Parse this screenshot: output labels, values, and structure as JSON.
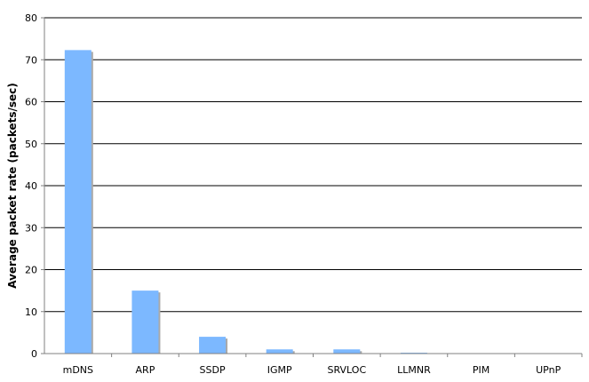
{
  "chart_data": {
    "type": "bar",
    "title": "",
    "xlabel": "",
    "ylabel": "Average packet rate (packets/sec)",
    "categories": [
      "mDNS",
      "ARP",
      "SSDP",
      "IGMP",
      "SRVLOC",
      "LLMNR",
      "PIM",
      "UPnP"
    ],
    "values": [
      72.3,
      15.0,
      4.0,
      1.0,
      1.0,
      0.2,
      0.05,
      0.05
    ],
    "ylim": [
      0,
      80
    ],
    "yticks": [
      "0",
      "10",
      "20",
      "30",
      "40",
      "50",
      "60",
      "70",
      "80"
    ],
    "grid": true,
    "legend": "none",
    "colors": {
      "bar": "#7cb8ff",
      "bar_shadow": "#a9a9a9",
      "grid": "#000000",
      "axis": "#808080"
    }
  }
}
